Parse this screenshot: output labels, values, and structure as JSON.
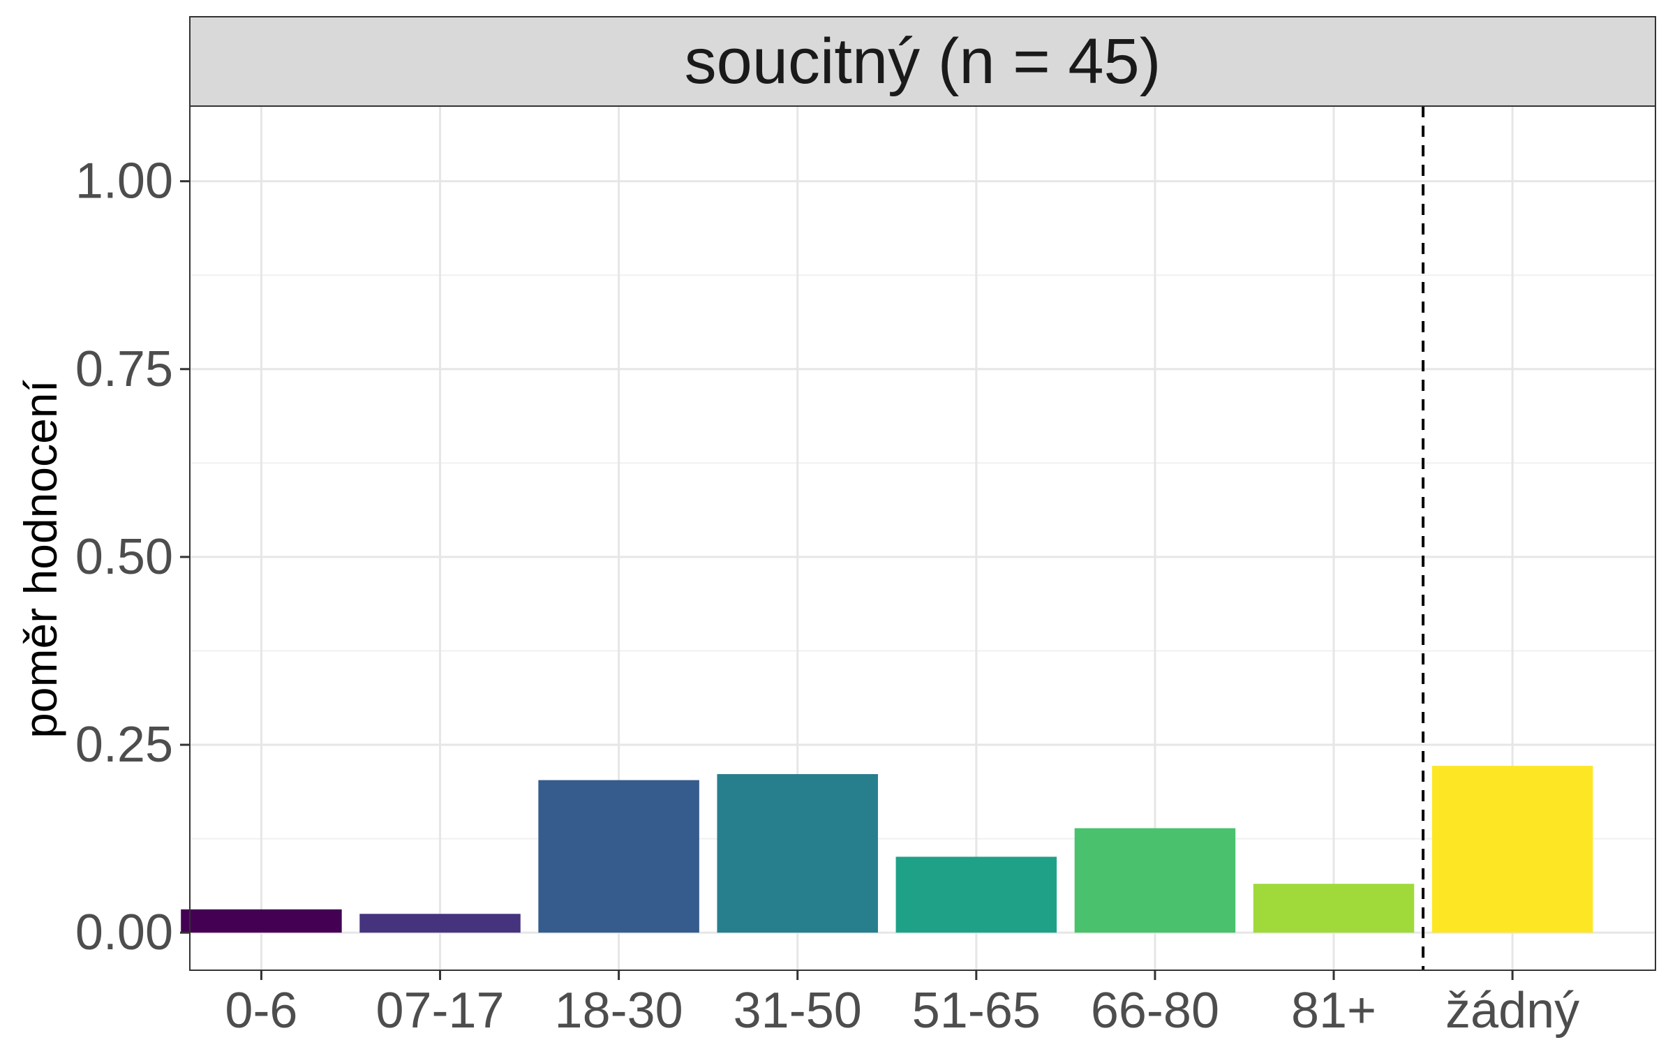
{
  "chart_data": {
    "type": "bar",
    "title": "soucitný (n = 45)",
    "xlabel": "",
    "ylabel": "poměr hodnocení",
    "categories": [
      "0-6",
      "07-17",
      "18-30",
      "31-50",
      "51-65",
      "66-80",
      "81+",
      "žádný"
    ],
    "values": [
      0.031,
      0.025,
      0.203,
      0.211,
      0.101,
      0.139,
      0.065,
      0.222
    ],
    "colors": [
      "#440154",
      "#46337E",
      "#365C8D",
      "#277F8E",
      "#1FA187",
      "#4AC16D",
      "#9FDA3A",
      "#FDE725"
    ],
    "ylim": [
      -0.05,
      1.1
    ],
    "yticks": [
      0,
      0.25,
      0.5,
      0.75,
      1.0
    ],
    "ytick_labels": [
      "0.00",
      "0.25",
      "0.50",
      "0.75",
      "1.00"
    ],
    "separator_after_category": "81+",
    "grid": true,
    "strip_fill": "#d9d9d9",
    "legend": "none"
  }
}
